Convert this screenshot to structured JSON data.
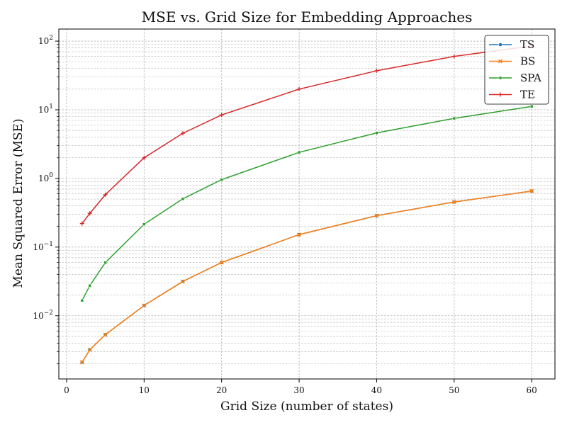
{
  "chart_data": {
    "type": "line",
    "title": "MSE vs. Grid Size for Embedding Approaches",
    "xlabel": "Grid Size (number of states)",
    "ylabel": "Mean Squared Error (MSE)",
    "x": [
      2,
      3,
      5,
      10,
      15,
      20,
      30,
      40,
      50,
      60
    ],
    "xlim": [
      -1,
      63
    ],
    "ylim": [
      0.0012,
      150
    ],
    "yscale": "log",
    "grid": true,
    "legend_position": "top-right",
    "x_ticks": [
      {
        "value": 0,
        "label": "0"
      },
      {
        "value": 10,
        "label": "10"
      },
      {
        "value": 20,
        "label": "20"
      },
      {
        "value": 30,
        "label": "30"
      },
      {
        "value": 40,
        "label": "40"
      },
      {
        "value": 50,
        "label": "50"
      },
      {
        "value": 60,
        "label": "60"
      }
    ],
    "y_ticks": [
      {
        "value": 0.01,
        "base": "10",
        "exp": "−2"
      },
      {
        "value": 0.1,
        "base": "10",
        "exp": "−1"
      },
      {
        "value": 1,
        "base": "10",
        "exp": "0"
      },
      {
        "value": 10,
        "base": "10",
        "exp": "1"
      },
      {
        "value": 100,
        "base": "10",
        "exp": "2"
      }
    ],
    "series": [
      {
        "name": "TS",
        "color": "#1f77b4",
        "marker": "circle",
        "values": [
          0.0021,
          0.0032,
          0.0053,
          0.0141,
          0.0316,
          0.0596,
          0.152,
          0.287,
          0.454,
          0.655
        ]
      },
      {
        "name": "BS",
        "color": "#ff7f0e",
        "marker": "x",
        "values": [
          0.0021,
          0.0032,
          0.0053,
          0.0141,
          0.0316,
          0.0596,
          0.152,
          0.287,
          0.454,
          0.655
        ]
      },
      {
        "name": "SPA",
        "color": "#2ca02c",
        "marker": "square",
        "values": [
          0.0167,
          0.0275,
          0.0595,
          0.215,
          0.505,
          0.96,
          2.4,
          4.6,
          7.5,
          11.2
        ]
      },
      {
        "name": "TE",
        "color": "#d62728",
        "marker": "plus",
        "values": [
          0.22,
          0.31,
          0.58,
          2.0,
          4.55,
          8.4,
          20.0,
          37.0,
          60.0,
          85.0
        ]
      }
    ]
  }
}
